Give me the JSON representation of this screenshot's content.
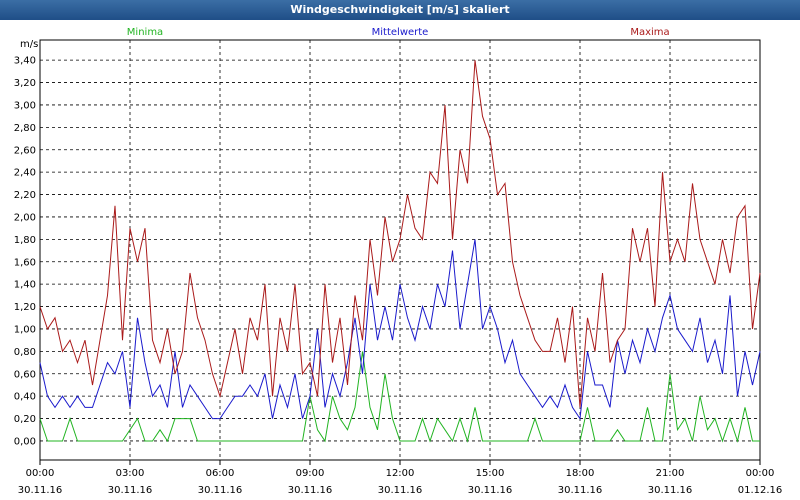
{
  "chart_data": {
    "type": "line",
    "title": "Windgeschwindigkeit [m/s] skaliert",
    "y_unit": "m/s",
    "x": [
      0,
      0.25,
      0.5,
      0.75,
      1,
      1.25,
      1.5,
      1.75,
      2,
      2.25,
      2.5,
      2.75,
      3,
      3.25,
      3.5,
      3.75,
      4,
      4.25,
      4.5,
      4.75,
      5,
      5.25,
      5.5,
      5.75,
      6,
      6.25,
      6.5,
      6.75,
      7,
      7.25,
      7.5,
      7.75,
      8,
      8.25,
      8.5,
      8.75,
      9,
      9.25,
      9.5,
      9.75,
      10,
      10.25,
      10.5,
      10.75,
      11,
      11.25,
      11.5,
      11.75,
      12,
      12.25,
      12.5,
      12.75,
      13,
      13.25,
      13.5,
      13.75,
      14,
      14.25,
      14.5,
      14.75,
      15,
      15.25,
      15.5,
      15.75,
      16,
      16.25,
      16.5,
      16.75,
      17,
      17.25,
      17.5,
      17.75,
      18,
      18.25,
      18.5,
      18.75,
      19,
      19.25,
      19.5,
      19.75,
      20,
      20.25,
      20.5,
      20.75,
      21,
      21.25,
      21.5,
      21.75,
      22,
      22.25,
      22.5,
      22.75,
      23,
      23.25,
      23.5,
      23.75,
      24
    ],
    "series": [
      {
        "name": "Minima",
        "color": "#22b422",
        "values": [
          0.2,
          0,
          0,
          0,
          0.2,
          0,
          0,
          0,
          0,
          0,
          0,
          0,
          0.1,
          0.2,
          0,
          0,
          0.1,
          0,
          0.2,
          0.2,
          0.2,
          0,
          0,
          0,
          0,
          0,
          0,
          0,
          0,
          0,
          0,
          0,
          0,
          0,
          0,
          0,
          0.4,
          0.1,
          0,
          0.4,
          0.2,
          0.1,
          0.3,
          0.8,
          0.3,
          0.1,
          0.6,
          0.2,
          0,
          0,
          0,
          0.2,
          0,
          0.2,
          0.1,
          0,
          0.2,
          0,
          0.3,
          0,
          0,
          0,
          0,
          0,
          0,
          0,
          0.2,
          0,
          0,
          0,
          0,
          0,
          0,
          0.3,
          0,
          0,
          0,
          0.1,
          0,
          0,
          0,
          0.3,
          0,
          0,
          0.6,
          0.1,
          0.2,
          0,
          0.4,
          0.1,
          0.2,
          0,
          0.2,
          0,
          0.3,
          0,
          0
        ]
      },
      {
        "name": "Mittelwerte",
        "color": "#1a1acc",
        "values": [
          0.7,
          0.4,
          0.3,
          0.4,
          0.3,
          0.4,
          0.3,
          0.3,
          0.5,
          0.7,
          0.6,
          0.8,
          0.3,
          1.1,
          0.7,
          0.4,
          0.5,
          0.3,
          0.8,
          0.3,
          0.5,
          0.4,
          0.3,
          0.2,
          0.2,
          0.3,
          0.4,
          0.4,
          0.5,
          0.4,
          0.6,
          0.2,
          0.5,
          0.3,
          0.6,
          0.2,
          0.4,
          1.0,
          0.3,
          0.6,
          0.4,
          0.7,
          1.1,
          0.6,
          1.4,
          0.9,
          1.2,
          0.9,
          1.4,
          1.1,
          0.9,
          1.2,
          1.0,
          1.4,
          1.2,
          1.7,
          1.0,
          1.4,
          1.8,
          1.0,
          1.2,
          1.0,
          0.7,
          0.9,
          0.6,
          0.5,
          0.4,
          0.3,
          0.4,
          0.3,
          0.5,
          0.3,
          0.2,
          0.8,
          0.5,
          0.5,
          0.3,
          0.9,
          0.6,
          0.9,
          0.7,
          1.0,
          0.8,
          1.1,
          1.3,
          1.0,
          0.9,
          0.8,
          1.1,
          0.7,
          0.9,
          0.6,
          1.3,
          0.4,
          0.8,
          0.5,
          0.8
        ]
      },
      {
        "name": "Maxima",
        "color": "#aa1a1a",
        "values": [
          1.2,
          1.0,
          1.1,
          0.8,
          0.9,
          0.7,
          0.9,
          0.5,
          0.9,
          1.3,
          2.1,
          0.9,
          1.9,
          1.6,
          1.9,
          0.9,
          0.7,
          1.0,
          0.6,
          0.8,
          1.5,
          1.1,
          0.9,
          0.6,
          0.4,
          0.7,
          1.0,
          0.6,
          1.1,
          0.9,
          1.4,
          0.4,
          1.1,
          0.8,
          1.4,
          0.6,
          0.7,
          0.4,
          1.4,
          0.7,
          1.1,
          0.5,
          1.3,
          0.9,
          1.8,
          1.3,
          2.0,
          1.6,
          1.8,
          2.2,
          1.9,
          1.8,
          2.4,
          2.3,
          3.0,
          1.8,
          2.6,
          2.3,
          3.4,
          2.9,
          2.7,
          2.2,
          2.3,
          1.6,
          1.3,
          1.1,
          0.9,
          0.8,
          0.8,
          1.1,
          0.7,
          1.2,
          0.3,
          1.1,
          0.8,
          1.5,
          0.7,
          0.9,
          1.0,
          1.9,
          1.6,
          1.9,
          1.2,
          2.4,
          1.6,
          1.8,
          1.6,
          2.3,
          1.8,
          1.6,
          1.4,
          1.8,
          1.5,
          2.0,
          2.1,
          1.0,
          1.5
        ]
      }
    ],
    "xlim": [
      0,
      24
    ],
    "xticks": [
      {
        "value": 0,
        "label": "00:00"
      },
      {
        "value": 3,
        "label": "03:00"
      },
      {
        "value": 6,
        "label": "06:00"
      },
      {
        "value": 9,
        "label": "09:00"
      },
      {
        "value": 12,
        "label": "12:00"
      },
      {
        "value": 15,
        "label": "15:00"
      },
      {
        "value": 18,
        "label": "18:00"
      },
      {
        "value": 21,
        "label": "21:00"
      },
      {
        "value": 24,
        "label": "00:00"
      }
    ],
    "xtick_dates": [
      "30.11.16",
      "30.11.16",
      "30.11.16",
      "30.11.16",
      "30.11.16",
      "30.11.16",
      "30.11.16",
      "30.11.16",
      "01.12.16"
    ],
    "ylim": [
      -0.17,
      3.58
    ],
    "yticks": [
      {
        "value": 0,
        "label": "0,00"
      },
      {
        "value": 0.2,
        "label": "0,20"
      },
      {
        "value": 0.4,
        "label": "0,40"
      },
      {
        "value": 0.6,
        "label": "0,60"
      },
      {
        "value": 0.8,
        "label": "0,80"
      },
      {
        "value": 1,
        "label": "1,00"
      },
      {
        "value": 1.2,
        "label": "1,20"
      },
      {
        "value": 1.4,
        "label": "1,40"
      },
      {
        "value": 1.6,
        "label": "1,60"
      },
      {
        "value": 1.8,
        "label": "1,80"
      },
      {
        "value": 2,
        "label": "2,00"
      },
      {
        "value": 2.2,
        "label": "2,20"
      },
      {
        "value": 2.4,
        "label": "2,40"
      },
      {
        "value": 2.6,
        "label": "2,60"
      },
      {
        "value": 2.8,
        "label": "2,80"
      },
      {
        "value": 3,
        "label": "3,00"
      },
      {
        "value": 3.2,
        "label": "3,20"
      },
      {
        "value": 3.4,
        "label": "3,40"
      }
    ],
    "grid": true
  }
}
